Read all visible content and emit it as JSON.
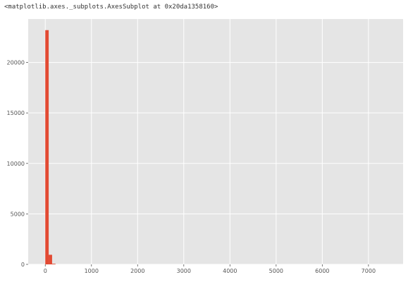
{
  "output": {
    "repr": "<matplotlib.axes._subplots.AxesSubplot at 0x20da1358160>"
  },
  "colors": {
    "plot_background": "#e5e5e5",
    "grid": "#ffffff",
    "bar": "#e24a33",
    "tick_text": "#555555"
  },
  "chart_data": {
    "type": "bar",
    "style": "ggplot histogram",
    "title": "",
    "xlabel": "",
    "ylabel": "",
    "grid": true,
    "xlim": [
      -370,
      7750
    ],
    "ylim": [
      0,
      24300
    ],
    "xticks": [
      0,
      1000,
      2000,
      3000,
      4000,
      5000,
      6000,
      7000
    ],
    "yticks": [
      0,
      5000,
      10000,
      15000,
      20000
    ],
    "bin_edges": [
      0,
      74,
      148,
      222
    ],
    "values": [
      23200,
      950,
      60
    ]
  }
}
